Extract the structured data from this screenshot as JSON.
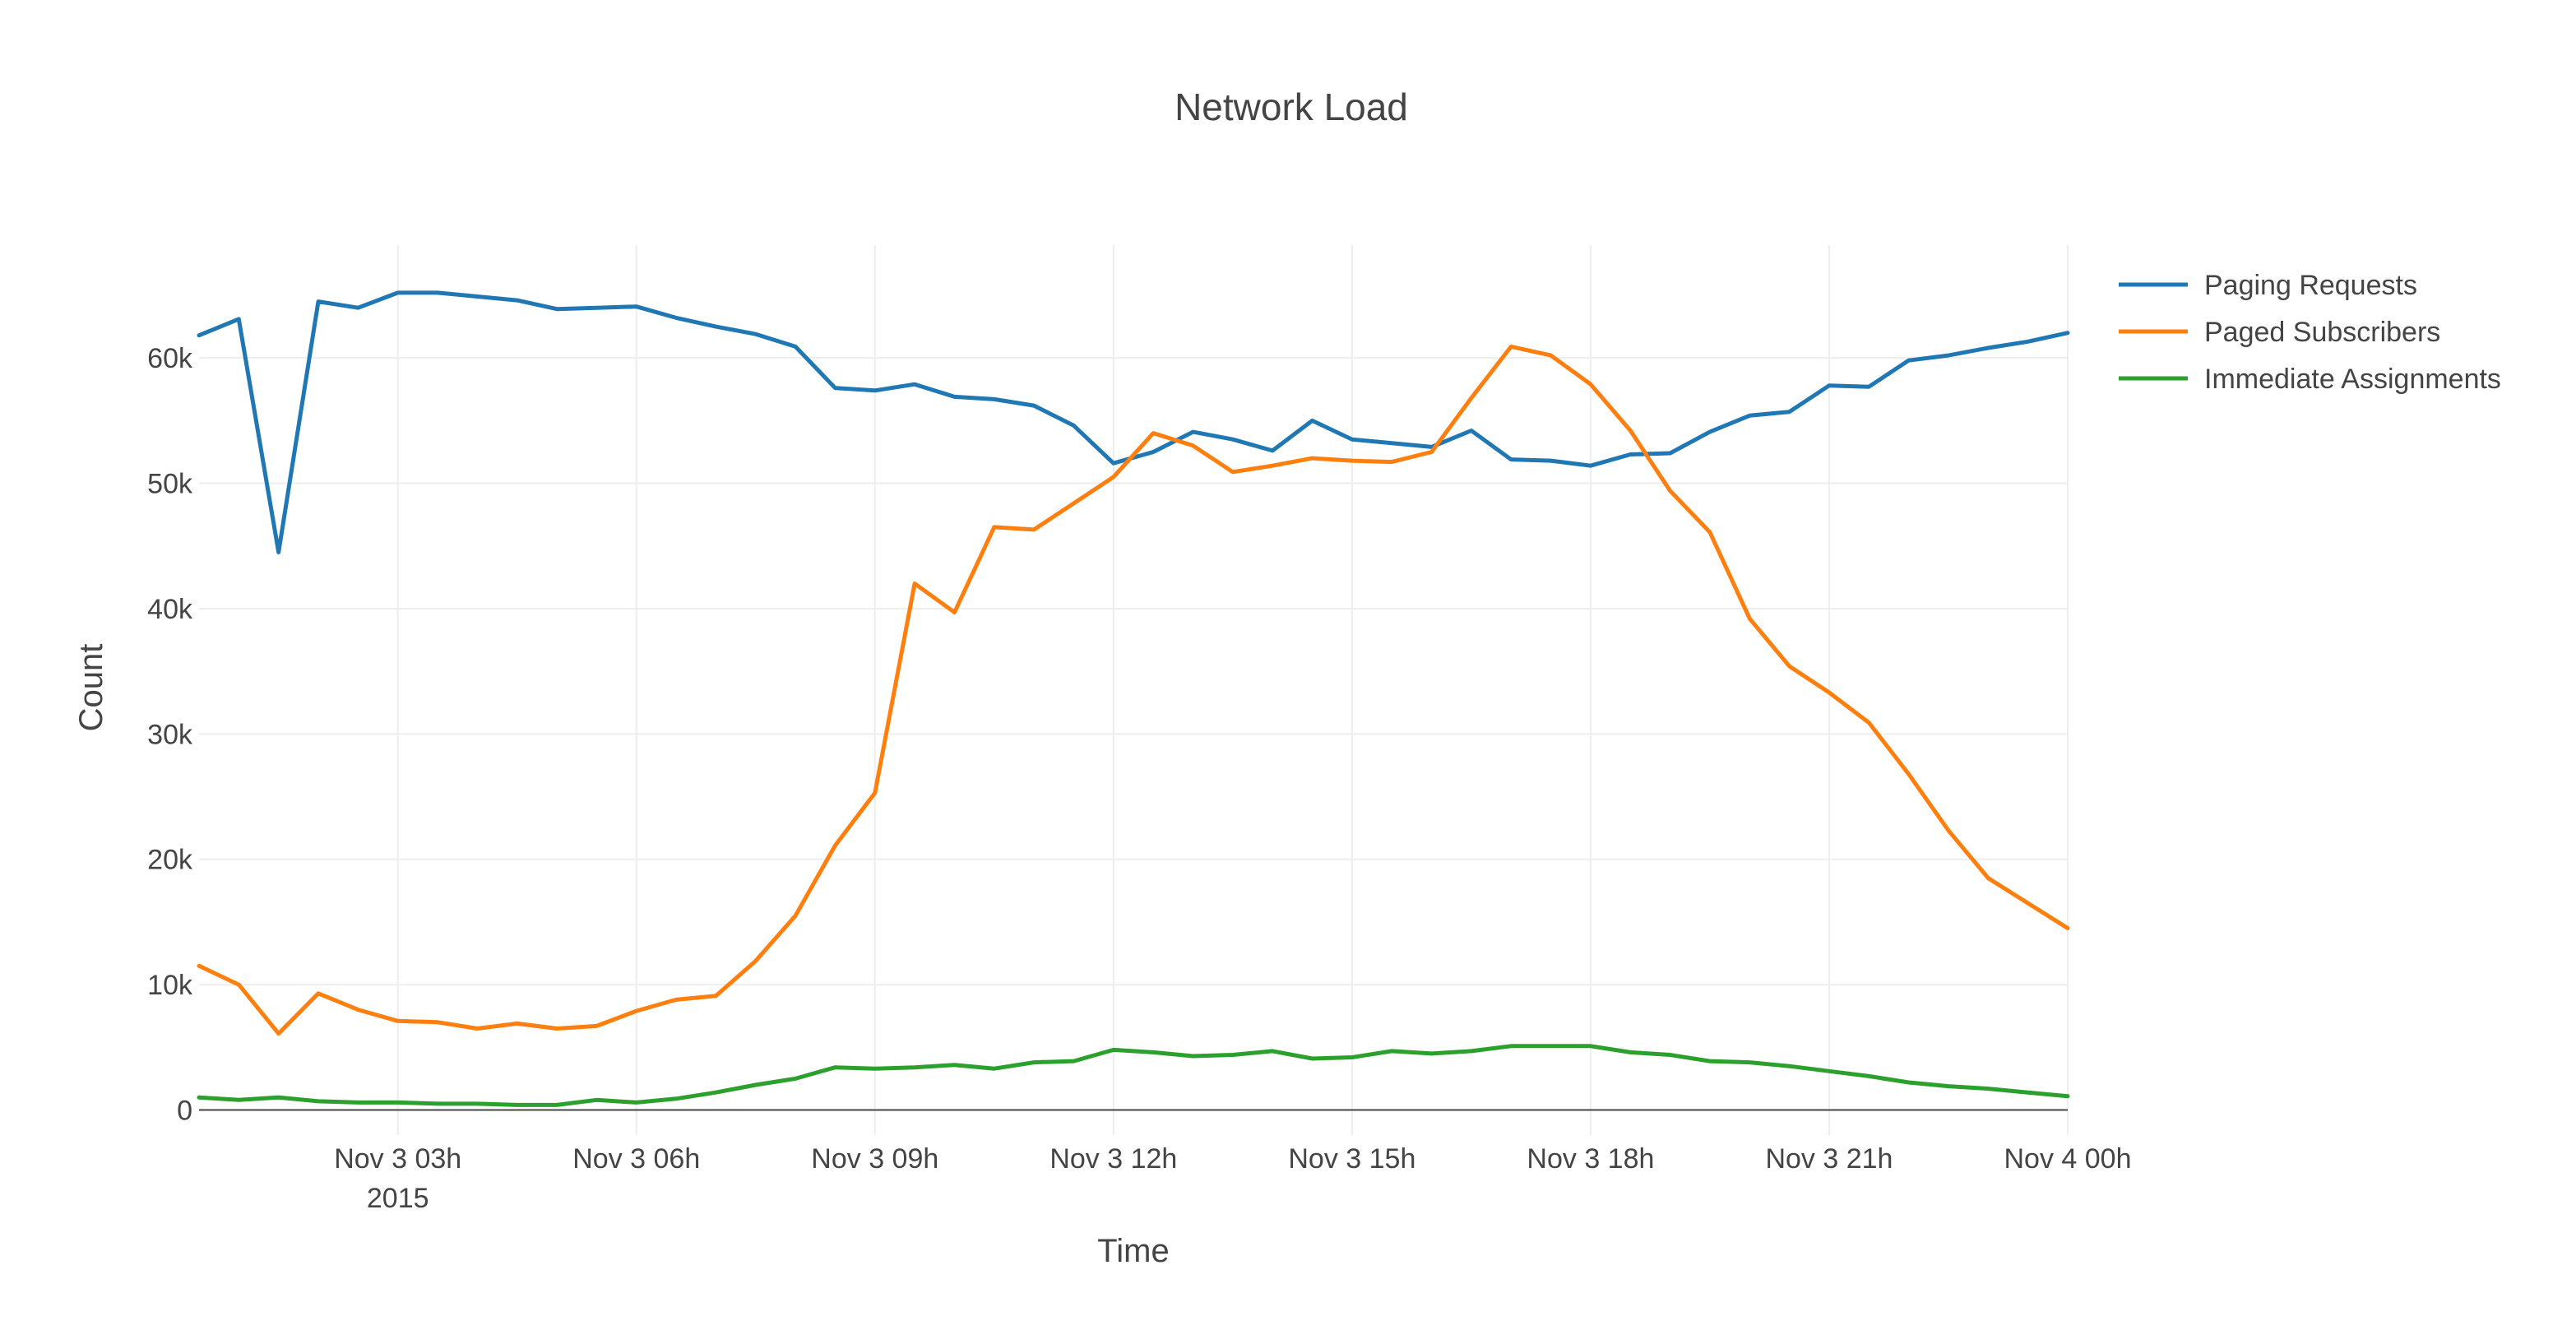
{
  "chart_data": {
    "type": "line",
    "title": "Network Load",
    "xlabel": "Time",
    "ylabel": "Count",
    "x_range": [
      "2015-11-03 00:30",
      "2015-11-04 00:00"
    ],
    "ylim": [
      -2000,
      69000
    ],
    "x_ticks": [
      {
        "value": "2015-11-03 03:00",
        "label": "Nov 3 03h",
        "sublabel": "2015"
      },
      {
        "value": "2015-11-03 06:00",
        "label": "Nov 3 06h",
        "sublabel": ""
      },
      {
        "value": "2015-11-03 09:00",
        "label": "Nov 3 09h",
        "sublabel": ""
      },
      {
        "value": "2015-11-03 12:00",
        "label": "Nov 3 12h",
        "sublabel": ""
      },
      {
        "value": "2015-11-03 15:00",
        "label": "Nov 3 15h",
        "sublabel": ""
      },
      {
        "value": "2015-11-03 18:00",
        "label": "Nov 3 18h",
        "sublabel": ""
      },
      {
        "value": "2015-11-03 21:00",
        "label": "Nov 3 21h",
        "sublabel": ""
      },
      {
        "value": "2015-11-04 00:00",
        "label": "Nov 4 00h",
        "sublabel": ""
      }
    ],
    "y_ticks": [
      {
        "value": 0,
        "label": "0"
      },
      {
        "value": 10000,
        "label": "10k"
      },
      {
        "value": 20000,
        "label": "20k"
      },
      {
        "value": 30000,
        "label": "30k"
      },
      {
        "value": 40000,
        "label": "40k"
      },
      {
        "value": 50000,
        "label": "50k"
      },
      {
        "value": 60000,
        "label": "60k"
      }
    ],
    "grid": true,
    "legend_position": "top-right",
    "x": [
      "2015-11-03 00:30",
      "2015-11-03 01:00",
      "2015-11-03 01:30",
      "2015-11-03 02:00",
      "2015-11-03 02:30",
      "2015-11-03 03:00",
      "2015-11-03 03:30",
      "2015-11-03 04:00",
      "2015-11-03 04:30",
      "2015-11-03 05:00",
      "2015-11-03 05:30",
      "2015-11-03 06:00",
      "2015-11-03 06:30",
      "2015-11-03 07:00",
      "2015-11-03 07:30",
      "2015-11-03 08:00",
      "2015-11-03 08:30",
      "2015-11-03 09:00",
      "2015-11-03 09:30",
      "2015-11-03 10:00",
      "2015-11-03 10:30",
      "2015-11-03 11:00",
      "2015-11-03 11:30",
      "2015-11-03 12:00",
      "2015-11-03 12:30",
      "2015-11-03 13:00",
      "2015-11-03 13:30",
      "2015-11-03 14:00",
      "2015-11-03 14:30",
      "2015-11-03 15:00",
      "2015-11-03 15:30",
      "2015-11-03 16:00",
      "2015-11-03 16:30",
      "2015-11-03 17:00",
      "2015-11-03 17:30",
      "2015-11-03 18:00",
      "2015-11-03 18:30",
      "2015-11-03 19:00",
      "2015-11-03 19:30",
      "2015-11-03 20:00",
      "2015-11-03 20:30",
      "2015-11-03 21:00",
      "2015-11-03 21:30",
      "2015-11-03 22:00",
      "2015-11-03 22:30",
      "2015-11-03 23:00",
      "2015-11-03 23:30",
      "2015-11-04 00:00"
    ],
    "series": [
      {
        "name": "Paging Requests",
        "color": "#1f77b4",
        "values": [
          61800,
          63100,
          44500,
          64500,
          64000,
          65200,
          65200,
          64900,
          64600,
          63900,
          64000,
          64100,
          63200,
          62500,
          61900,
          60900,
          57600,
          57400,
          57900,
          56900,
          56700,
          56200,
          54600,
          51600,
          52500,
          54100,
          53500,
          52600,
          55000,
          53500,
          53200,
          52900,
          54200,
          51900,
          51800,
          51400,
          52300,
          52400,
          54100,
          55400,
          55700,
          57800,
          57700,
          59800,
          60200,
          60800,
          61300,
          62000
        ]
      },
      {
        "name": "Paged Subscribers",
        "color": "#ff7f0e",
        "values": [
          11500,
          10000,
          6100,
          9300,
          8000,
          7100,
          7000,
          6500,
          6900,
          6500,
          6700,
          7900,
          8800,
          9100,
          11900,
          15500,
          21100,
          25300,
          42000,
          39700,
          46500,
          46300,
          48400,
          50500,
          54000,
          53000,
          50900,
          51400,
          52000,
          51800,
          51700,
          52500,
          56800,
          60900,
          60200,
          57900,
          54200,
          49400,
          46100,
          39200,
          35400,
          33300,
          30900,
          26800,
          22300,
          18500,
          16500,
          14500
        ]
      },
      {
        "name": "Immediate Assignments",
        "color": "#2ca02c",
        "values": [
          1000,
          800,
          1000,
          700,
          600,
          600,
          500,
          500,
          400,
          400,
          800,
          600,
          900,
          1400,
          2000,
          2500,
          3400,
          3300,
          3400,
          3600,
          3300,
          3800,
          3900,
          4800,
          4600,
          4300,
          4400,
          4700,
          4100,
          4200,
          4700,
          4500,
          4700,
          5100,
          5100,
          5100,
          4600,
          4400,
          3900,
          3800,
          3500,
          3100,
          2700,
          2200,
          1900,
          1700,
          1400,
          1100
        ]
      }
    ]
  }
}
